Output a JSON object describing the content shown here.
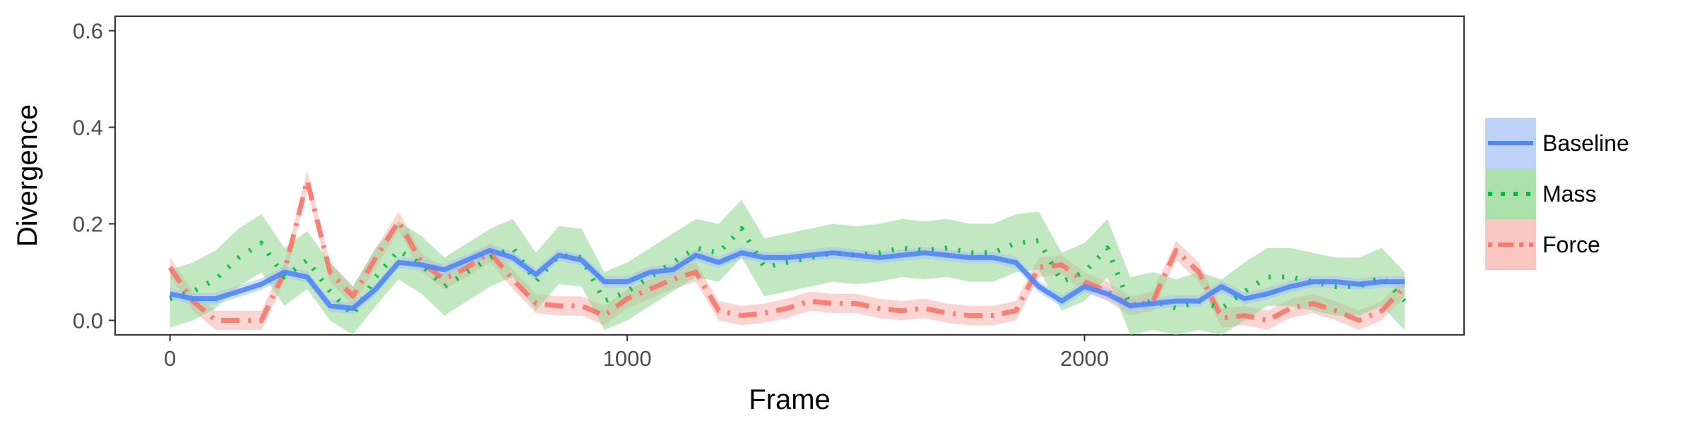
{
  "chart_data": {
    "type": "line",
    "xlabel": "Frame",
    "ylabel": "Divergence",
    "xlim": [
      -120,
      2830
    ],
    "ylim": [
      -0.03,
      0.63
    ],
    "xticks": [
      0,
      1000,
      2000
    ],
    "xtick_labels": [
      "0",
      "1000",
      "2000"
    ],
    "yticks": [
      0.0,
      0.2,
      0.4,
      0.6
    ],
    "ytick_labels": [
      "0.0",
      "0.2",
      "0.4",
      "0.6"
    ],
    "grid": false,
    "legend_position": "right",
    "series": [
      {
        "name": "Baseline",
        "color": "#4f86f7",
        "band_color": "#a8c2f7",
        "line_style": "solid",
        "x": [
          0,
          50,
          100,
          150,
          200,
          250,
          300,
          350,
          400,
          450,
          500,
          550,
          600,
          650,
          700,
          750,
          800,
          850,
          900,
          950,
          1000,
          1050,
          1100,
          1150,
          1200,
          1250,
          1300,
          1350,
          1400,
          1450,
          1500,
          1550,
          1600,
          1650,
          1700,
          1750,
          1800,
          1850,
          1900,
          1950,
          2000,
          2050,
          2100,
          2150,
          2200,
          2250,
          2300,
          2350,
          2400,
          2450,
          2500,
          2550,
          2600,
          2650,
          2700
        ],
        "y": [
          0.055,
          0.045,
          0.045,
          0.06,
          0.075,
          0.1,
          0.09,
          0.03,
          0.025,
          0.065,
          0.12,
          0.115,
          0.105,
          0.125,
          0.145,
          0.13,
          0.095,
          0.135,
          0.125,
          0.08,
          0.08,
          0.1,
          0.105,
          0.135,
          0.12,
          0.14,
          0.13,
          0.13,
          0.135,
          0.14,
          0.135,
          0.13,
          0.135,
          0.14,
          0.135,
          0.13,
          0.13,
          0.12,
          0.07,
          0.04,
          0.07,
          0.055,
          0.03,
          0.035,
          0.04,
          0.04,
          0.07,
          0.045,
          0.055,
          0.07,
          0.08,
          0.08,
          0.075,
          0.08,
          0.08
        ],
        "band": 0.012
      },
      {
        "name": "Mass",
        "color": "#00ba38",
        "band_color": "#8fd68f",
        "line_style": "dotted",
        "x": [
          0,
          50,
          100,
          150,
          200,
          250,
          300,
          350,
          400,
          450,
          500,
          550,
          600,
          650,
          700,
          750,
          800,
          850,
          900,
          950,
          1000,
          1050,
          1100,
          1150,
          1200,
          1250,
          1300,
          1350,
          1400,
          1450,
          1500,
          1550,
          1600,
          1650,
          1700,
          1750,
          1800,
          1850,
          1900,
          1950,
          2000,
          2050,
          2100,
          2150,
          2200,
          2250,
          2300,
          2350,
          2400,
          2450,
          2500,
          2550,
          2600,
          2650,
          2700
        ],
        "y": [
          0.045,
          0.06,
          0.085,
          0.13,
          0.16,
          0.09,
          0.125,
          0.06,
          0.01,
          0.09,
          0.145,
          0.115,
          0.07,
          0.1,
          0.13,
          0.15,
          0.08,
          0.135,
          0.13,
          0.04,
          0.06,
          0.09,
          0.12,
          0.15,
          0.14,
          0.19,
          0.11,
          0.12,
          0.13,
          0.14,
          0.135,
          0.14,
          0.15,
          0.145,
          0.15,
          0.14,
          0.14,
          0.16,
          0.165,
          0.08,
          0.1,
          0.15,
          0.03,
          0.04,
          0.025,
          0.04,
          0.025,
          0.06,
          0.09,
          0.09,
          0.08,
          0.07,
          0.07,
          0.09,
          0.04
        ],
        "band": 0.06
      },
      {
        "name": "Force",
        "color": "#f8766d",
        "band_color": "#f8b3ad",
        "line_style": "dashdot",
        "x": [
          0,
          50,
          100,
          150,
          200,
          250,
          300,
          350,
          400,
          450,
          500,
          550,
          600,
          650,
          700,
          750,
          800,
          850,
          900,
          950,
          1000,
          1050,
          1100,
          1150,
          1200,
          1250,
          1300,
          1350,
          1400,
          1450,
          1500,
          1550,
          1600,
          1650,
          1700,
          1750,
          1800,
          1850,
          1900,
          1950,
          2000,
          2050,
          2100,
          2150,
          2200,
          2250,
          2300,
          2350,
          2400,
          2450,
          2500,
          2550,
          2600,
          2650,
          2700
        ],
        "y": [
          0.11,
          0.04,
          0.0,
          0.0,
          0.0,
          0.1,
          0.29,
          0.1,
          0.05,
          0.13,
          0.205,
          0.12,
          0.085,
          0.11,
          0.14,
          0.085,
          0.035,
          0.03,
          0.03,
          0.01,
          0.045,
          0.065,
          0.085,
          0.1,
          0.02,
          0.01,
          0.015,
          0.025,
          0.04,
          0.035,
          0.035,
          0.025,
          0.02,
          0.025,
          0.015,
          0.01,
          0.01,
          0.02,
          0.11,
          0.115,
          0.08,
          0.06,
          0.03,
          0.04,
          0.145,
          0.1,
          0.005,
          0.01,
          0.0,
          0.025,
          0.035,
          0.02,
          0.0,
          0.02,
          0.07
        ],
        "band": 0.02
      }
    ]
  }
}
